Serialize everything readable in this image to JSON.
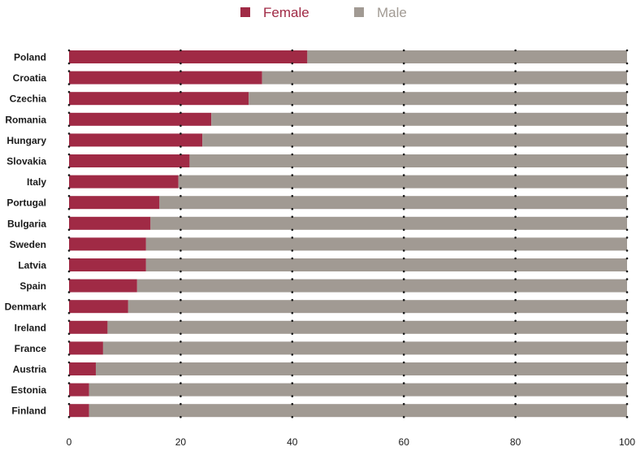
{
  "chart_data": {
    "type": "bar",
    "orientation": "horizontal",
    "stacked": true,
    "categories": [
      "Poland",
      "Croatia",
      "Czechia",
      "Romania",
      "Hungary",
      "Slovakia",
      "Italy",
      "Portugal",
      "Bulgaria",
      "Sweden",
      "Latvia",
      "Spain",
      "Denmark",
      "Ireland",
      "France",
      "Austria",
      "Estonia",
      "Finland"
    ],
    "series": [
      {
        "name": "Female",
        "color": "#a02a45",
        "values": [
          42.7,
          34.6,
          32.2,
          25.5,
          23.9,
          21.6,
          19.6,
          16.2,
          14.6,
          13.8,
          13.8,
          12.2,
          10.6,
          6.9,
          6.1,
          4.8,
          3.6,
          3.6
        ]
      },
      {
        "name": "Male",
        "color": "#a19a93",
        "values": [
          57.3,
          65.4,
          67.8,
          74.5,
          76.1,
          78.4,
          80.4,
          83.8,
          85.4,
          86.2,
          86.2,
          87.8,
          89.4,
          93.1,
          93.9,
          95.2,
          96.4,
          96.4
        ]
      }
    ],
    "xlim": [
      0,
      100
    ],
    "xticks": [
      "0",
      "20",
      "40",
      "60",
      "80",
      "100"
    ],
    "xlabel": "",
    "ylabel": "",
    "title": "",
    "legend": {
      "position": "top-center",
      "entries": [
        "Female",
        "Male"
      ]
    },
    "grid": "dotted vertical markers at 20, 40, 60, 80, 100"
  }
}
